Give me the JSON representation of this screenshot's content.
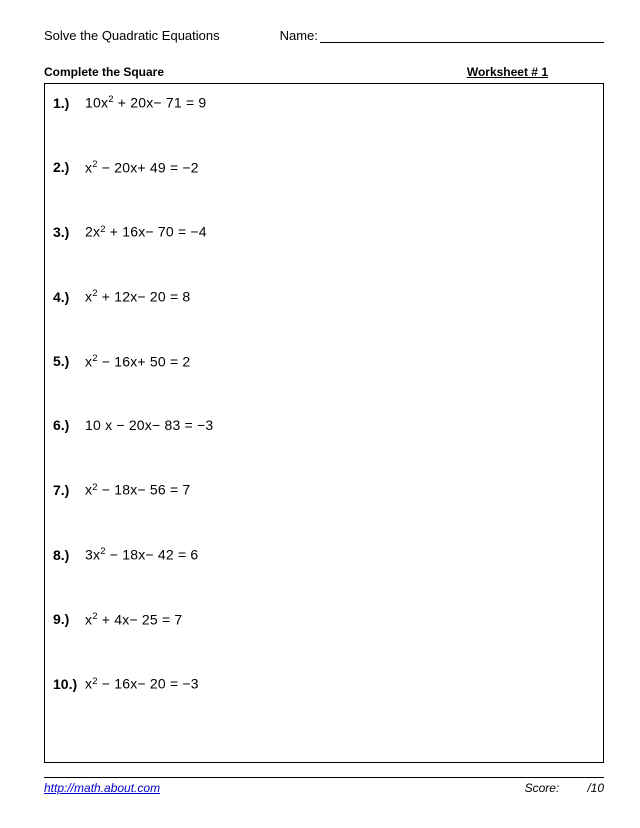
{
  "header": {
    "title": "Solve the Quadratic Equations",
    "name_label": "Name:"
  },
  "subheader": {
    "subtitle": "Complete the Square",
    "worksheet": "Worksheet # 1"
  },
  "problems": [
    {
      "num": "1.)",
      "coef_a": "10",
      "sup_a": "2",
      "mid": " + 20x− 71 = 9"
    },
    {
      "num": "2.)",
      "coef_a": "",
      "sup_a": "2",
      "mid": " − 20x+ 49 = −2"
    },
    {
      "num": "3.)",
      "coef_a": "2",
      "sup_a": "2",
      "mid": " + 16x− 70 = −4"
    },
    {
      "num": "4.)",
      "coef_a": "",
      "sup_a": "2",
      "mid": " + 12x− 20 = 8"
    },
    {
      "num": "5.)",
      "coef_a": "",
      "sup_a": "2",
      "mid": " − 16x+ 50 = 2"
    },
    {
      "num": "6.)",
      "coef_a": "10 ",
      "sup_a": "",
      "mid": " − 20x− 83 = −3"
    },
    {
      "num": "7.)",
      "coef_a": "",
      "sup_a": "2",
      "mid": " − 18x− 56 = 7"
    },
    {
      "num": "8.)",
      "coef_a": "3",
      "sup_a": "2",
      "mid": " − 18x− 42 = 6"
    },
    {
      "num": "9.)",
      "coef_a": "",
      "sup_a": "2",
      "mid": " + 4x− 25 = 7"
    },
    {
      "num": "10.)",
      "coef_a": "",
      "sup_a": "2",
      "mid": " − 16x− 20 = −3"
    }
  ],
  "footer": {
    "link": "http://math.about.com",
    "score_label": "Score:",
    "score_total": "/10"
  },
  "style": {
    "page_bg": "#ffffff",
    "text_color": "#000000",
    "link_color": "#0000cc",
    "border_color": "#000000",
    "title_fontsize": 13,
    "body_fontsize": 14,
    "footer_fontsize": 12,
    "problem_spacing": 48
  }
}
